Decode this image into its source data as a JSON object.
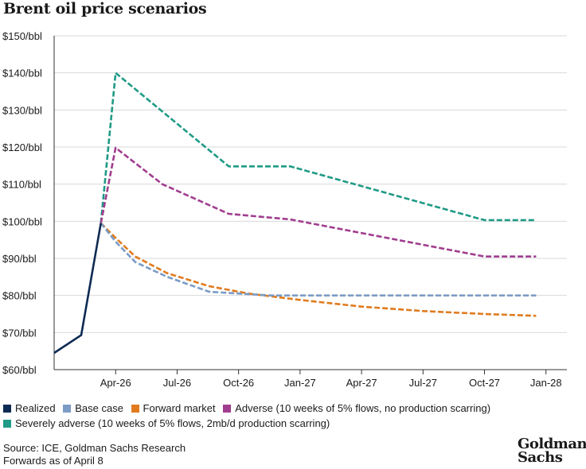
{
  "chart_data": {
    "type": "line",
    "title": "Brent oil price scenarios",
    "xlabel": "",
    "ylabel": "",
    "ylim": [
      60,
      150
    ],
    "yticks": [
      "$60/bbl",
      "$70/bbl",
      "$80/bbl",
      "$90/bbl",
      "$100/bbl",
      "$110/bbl",
      "$120/bbl",
      "$130/bbl",
      "$140/bbl",
      "$150/bbl"
    ],
    "ytick_values": [
      60,
      70,
      80,
      90,
      100,
      110,
      120,
      130,
      140,
      150
    ],
    "xlim": [
      2026.0,
      2028.085
    ],
    "xticks": [
      "Apr-26",
      "Jul-26",
      "Oct-26",
      "Jan-27",
      "Apr-27",
      "Jul-27",
      "Oct-27",
      "Jan-28"
    ],
    "xtick_values": [
      2026.25,
      2026.5,
      2026.75,
      2027.0,
      2027.25,
      2027.5,
      2027.75,
      2028.0
    ],
    "series": [
      {
        "name": "Realized",
        "color": "#0d2a52",
        "dash": false,
        "x": [
          2026.0,
          2026.11,
          2026.19
        ],
        "values": [
          64.5,
          69.3,
          99.5
        ]
      },
      {
        "name": "Base case",
        "color": "#7b9cc6",
        "dash": true,
        "x": [
          2026.19,
          2026.25,
          2026.33,
          2026.46,
          2026.63,
          2026.88,
          2027.0,
          2027.5,
          2027.96
        ],
        "values": [
          99.5,
          94.5,
          89,
          85,
          81,
          80,
          80,
          80,
          80
        ]
      },
      {
        "name": "Forward market",
        "color": "#e07b1f",
        "dash": true,
        "x": [
          2026.19,
          2026.25,
          2026.33,
          2026.46,
          2026.63,
          2026.79,
          2027.0,
          2027.25,
          2027.5,
          2027.75,
          2027.96
        ],
        "values": [
          99.5,
          95.5,
          90.5,
          86,
          82.5,
          80.5,
          78.8,
          77,
          75.8,
          75,
          74.5
        ]
      },
      {
        "name": "Adverse (10 weeks of 5% flows, no production scarring)",
        "color": "#a13d8f",
        "dash": true,
        "x": [
          2026.19,
          2026.25,
          2026.44,
          2026.71,
          2026.96,
          2027.75,
          2027.96
        ],
        "values": [
          99.5,
          119.8,
          110,
          102,
          100.5,
          90.5,
          90.5
        ]
      },
      {
        "name": "Severely adverse (10 weeks of 5% flows, 2mb/d production scarring)",
        "color": "#1f9a86",
        "dash": true,
        "x": [
          2026.19,
          2026.25,
          2026.71,
          2026.96,
          2027.75,
          2027.96
        ],
        "values": [
          99.5,
          140,
          114.8,
          114.8,
          100.3,
          100.3
        ]
      }
    ]
  },
  "footer": {
    "source": "Source: ICE, Goldman Sachs Research",
    "note": "Forwards as of April 8"
  },
  "logo": {
    "line1": "Goldman",
    "line2": "Sachs"
  }
}
